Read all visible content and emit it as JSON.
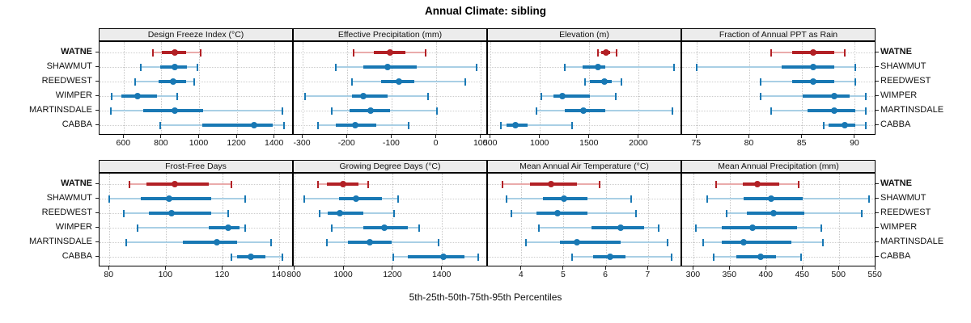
{
  "title": "Annual Climate: sibling",
  "x_axis_title": "5th-25th-50th-75th-95th Percentiles",
  "colors": {
    "highlight": "#b22025",
    "highlight_light": "#eaabab",
    "series": "#1878b4",
    "series_light": "#a9cfe5",
    "strip_bg": "#ececec",
    "grid": "#c6c6c6",
    "panel_border": "#000000"
  },
  "chart_data": {
    "type": "scatter",
    "subtype": "multi-panel percentile interval plot (dot = median, thick bar = 25th-75th, thin bar with caps = 5th-95th)",
    "categories": [
      "WATNE",
      "SHAWMUT",
      "REEDWEST",
      "WIMPER",
      "MARTINSDALE",
      "CABBA"
    ],
    "highlight_station": "WATNE",
    "percentile_labels": [
      "5th",
      "25th",
      "50th",
      "75th",
      "95th"
    ],
    "legend_position": "none",
    "grid": "dotted",
    "panels": [
      {
        "title": "Design Freeze Index (°C)",
        "row": 0,
        "col": 0,
        "xlim": [
          470,
          1500
        ],
        "ticks": [
          600,
          800,
          1000,
          1200,
          1400
        ],
        "values": [
          [
            755,
            800,
            870,
            930,
            1005
          ],
          [
            690,
            790,
            870,
            935,
            990
          ],
          [
            660,
            785,
            860,
            930,
            970
          ],
          [
            535,
            585,
            670,
            775,
            880
          ],
          [
            530,
            700,
            870,
            1020,
            1440
          ],
          [
            790,
            1015,
            1290,
            1390,
            1450
          ]
        ]
      },
      {
        "title": "Effective Precipitation (mm)",
        "row": 0,
        "col": 1,
        "xlim": [
          -320,
          115
        ],
        "ticks": [
          -300,
          -200,
          -100,
          0,
          100
        ],
        "values": [
          [
            -185,
            -140,
            -105,
            -70,
            -25
          ],
          [
            -225,
            -165,
            -110,
            -45,
            90
          ],
          [
            -190,
            -125,
            -85,
            -50,
            65
          ],
          [
            -295,
            -190,
            -165,
            -110,
            -20
          ],
          [
            -235,
            -195,
            -148,
            -105,
            0
          ],
          [
            -265,
            -225,
            -183,
            -136,
            -63
          ]
        ]
      },
      {
        "title": "Elevation (m)",
        "row": 0,
        "col": 2,
        "xlim": [
          470,
          2435
        ],
        "ticks": [
          500,
          1000,
          1500,
          2000
        ],
        "values": [
          [
            1580,
            1615,
            1665,
            1710,
            1770
          ],
          [
            1245,
            1425,
            1580,
            1655,
            2350
          ],
          [
            1450,
            1505,
            1650,
            1725,
            1820
          ],
          [
            1010,
            1135,
            1220,
            1500,
            1765
          ],
          [
            960,
            1250,
            1440,
            1655,
            2340
          ],
          [
            605,
            660,
            750,
            875,
            1320
          ]
        ]
      },
      {
        "title": "Fraction of Annual PPT as Rain",
        "row": 0,
        "col": 3,
        "xlim": [
          73.6,
          92
        ],
        "ticks": [
          75,
          80,
          85,
          90
        ],
        "values": [
          [
            82,
            84,
            86,
            88,
            89
          ],
          [
            75,
            83,
            86,
            88,
            90
          ],
          [
            81,
            84,
            86,
            88,
            90
          ],
          [
            81,
            85,
            88,
            89.5,
            91
          ],
          [
            82,
            85.5,
            88,
            90,
            91
          ],
          [
            87,
            87.5,
            89,
            90,
            91
          ]
        ]
      },
      {
        "title": "Frost-Free Days",
        "row": 1,
        "col": 0,
        "xlim": [
          76.5,
          145
        ],
        "ticks": [
          80,
          100,
          120,
          140
        ],
        "values": [
          [
            87,
            93,
            103,
            115,
            123
          ],
          [
            80,
            91,
            101,
            116,
            128
          ],
          [
            85,
            94,
            102,
            116,
            122
          ],
          [
            90,
            115,
            122,
            126,
            128
          ],
          [
            86,
            106,
            118,
            125,
            137
          ],
          [
            123,
            125,
            130,
            135,
            141
          ]
        ]
      },
      {
        "title": "Growing Degree Days (°C)",
        "row": 1,
        "col": 1,
        "xlim": [
          796,
          1585
        ],
        "ticks": [
          800,
          1000,
          1200,
          1400
        ],
        "values": [
          [
            895,
            930,
            995,
            1060,
            1100
          ],
          [
            840,
            980,
            1050,
            1155,
            1220
          ],
          [
            900,
            935,
            985,
            1080,
            1205
          ],
          [
            950,
            1080,
            1165,
            1260,
            1305
          ],
          [
            930,
            1015,
            1105,
            1195,
            1385
          ],
          [
            1200,
            1260,
            1405,
            1490,
            1545
          ]
        ]
      },
      {
        "title": "Mean Annual Air Temperature (°C)",
        "row": 1,
        "col": 2,
        "xlim": [
          3.2,
          7.8
        ],
        "ticks": [
          4,
          5,
          6,
          7
        ],
        "values": [
          [
            3.55,
            4.2,
            4.7,
            5.3,
            5.85
          ],
          [
            3.65,
            4.5,
            5.0,
            5.55,
            6.6
          ],
          [
            3.75,
            4.35,
            4.85,
            5.55,
            6.7
          ],
          [
            4.4,
            5.65,
            6.35,
            6.9,
            7.25
          ],
          [
            4.1,
            4.9,
            5.3,
            6.35,
            7.45
          ],
          [
            5.2,
            5.7,
            6.1,
            6.45,
            7.55
          ]
        ]
      },
      {
        "title": "Mean Annual Precipitation (mm)",
        "row": 1,
        "col": 3,
        "xlim": [
          284,
          551
        ],
        "ticks": [
          300,
          350,
          400,
          450,
          500,
          550
        ],
        "values": [
          [
            331,
            367,
            388,
            418,
            444
          ],
          [
            318,
            369,
            406,
            450,
            541
          ],
          [
            345,
            373,
            410,
            452,
            531
          ],
          [
            303,
            339,
            381,
            442,
            475
          ],
          [
            313,
            338,
            369,
            434,
            478
          ],
          [
            327,
            358,
            392,
            413,
            447
          ]
        ]
      }
    ]
  }
}
